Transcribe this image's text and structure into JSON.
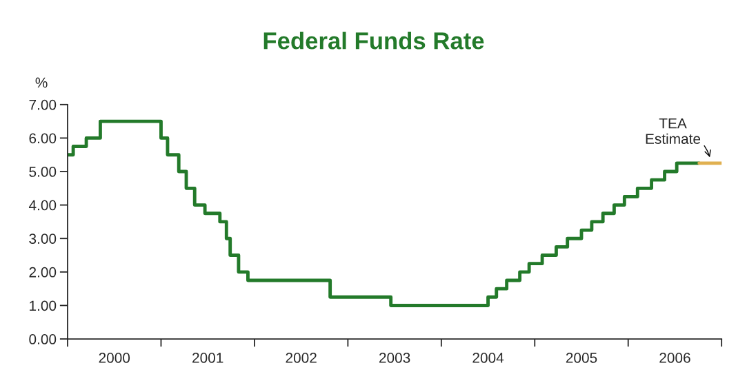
{
  "chart_data": {
    "type": "step",
    "title": "Federal Funds Rate",
    "ylabel": "%",
    "series": [
      {
        "color": "#237a2a",
        "x": [
          2000.0,
          2000.06,
          2000.2,
          2000.35,
          2001.0,
          2001.07,
          2001.19,
          2001.27,
          2001.36,
          2001.47,
          2001.63,
          2001.7,
          2001.74,
          2001.83,
          2001.93,
          2002.81,
          2003.46,
          2004.5,
          2004.59,
          2004.7,
          2004.84,
          2004.94,
          2005.08,
          2005.23,
          2005.35,
          2005.5,
          2005.61,
          2005.73,
          2005.85,
          2005.96,
          2006.1,
          2006.25,
          2006.39,
          2006.52,
          2006.76
        ],
        "values": [
          5.5,
          5.75,
          6.0,
          6.5,
          6.0,
          5.5,
          5.0,
          4.5,
          4.0,
          3.75,
          3.5,
          3.0,
          2.5,
          2.0,
          1.75,
          1.25,
          1.0,
          1.25,
          1.5,
          1.75,
          2.0,
          2.25,
          2.5,
          2.75,
          3.0,
          3.25,
          3.5,
          3.75,
          4.0,
          4.25,
          4.5,
          4.75,
          5.0,
          5.25,
          5.25
        ]
      },
      {
        "color": "#e0b050",
        "x": [
          2006.76,
          2007.0
        ],
        "values": [
          5.25,
          5.25
        ]
      }
    ],
    "annotations": [
      {
        "text": "TEA\nEstimate",
        "x": 2006.88,
        "y": 5.25
      }
    ],
    "xlim": [
      2000,
      2007
    ],
    "xticks": [
      {
        "value": 2000,
        "label": null
      },
      {
        "value": 2000.5,
        "label": "2000"
      },
      {
        "value": 2001,
        "label": null
      },
      {
        "value": 2001.5,
        "label": "2001"
      },
      {
        "value": 2002,
        "label": null
      },
      {
        "value": 2002.5,
        "label": "2002"
      },
      {
        "value": 2003,
        "label": null
      },
      {
        "value": 2003.5,
        "label": "2003"
      },
      {
        "value": 2004,
        "label": null
      },
      {
        "value": 2004.5,
        "label": "2004"
      },
      {
        "value": 2005,
        "label": null
      },
      {
        "value": 2005.5,
        "label": "2005"
      },
      {
        "value": 2006,
        "label": null
      },
      {
        "value": 2006.5,
        "label": "2006"
      },
      {
        "value": 2007,
        "label": null
      }
    ],
    "ylim": [
      0,
      7
    ],
    "yticks": [
      {
        "value": 0,
        "label": "0.00"
      },
      {
        "value": 1,
        "label": "1.00"
      },
      {
        "value": 2,
        "label": "2.00"
      },
      {
        "value": 3,
        "label": "3.00"
      },
      {
        "value": 4,
        "label": "4.00"
      },
      {
        "value": 5,
        "label": "5.00"
      },
      {
        "value": 6,
        "label": "6.00"
      },
      {
        "value": 7,
        "label": "7.00"
      }
    ],
    "grid": false,
    "line_style": "solid"
  }
}
